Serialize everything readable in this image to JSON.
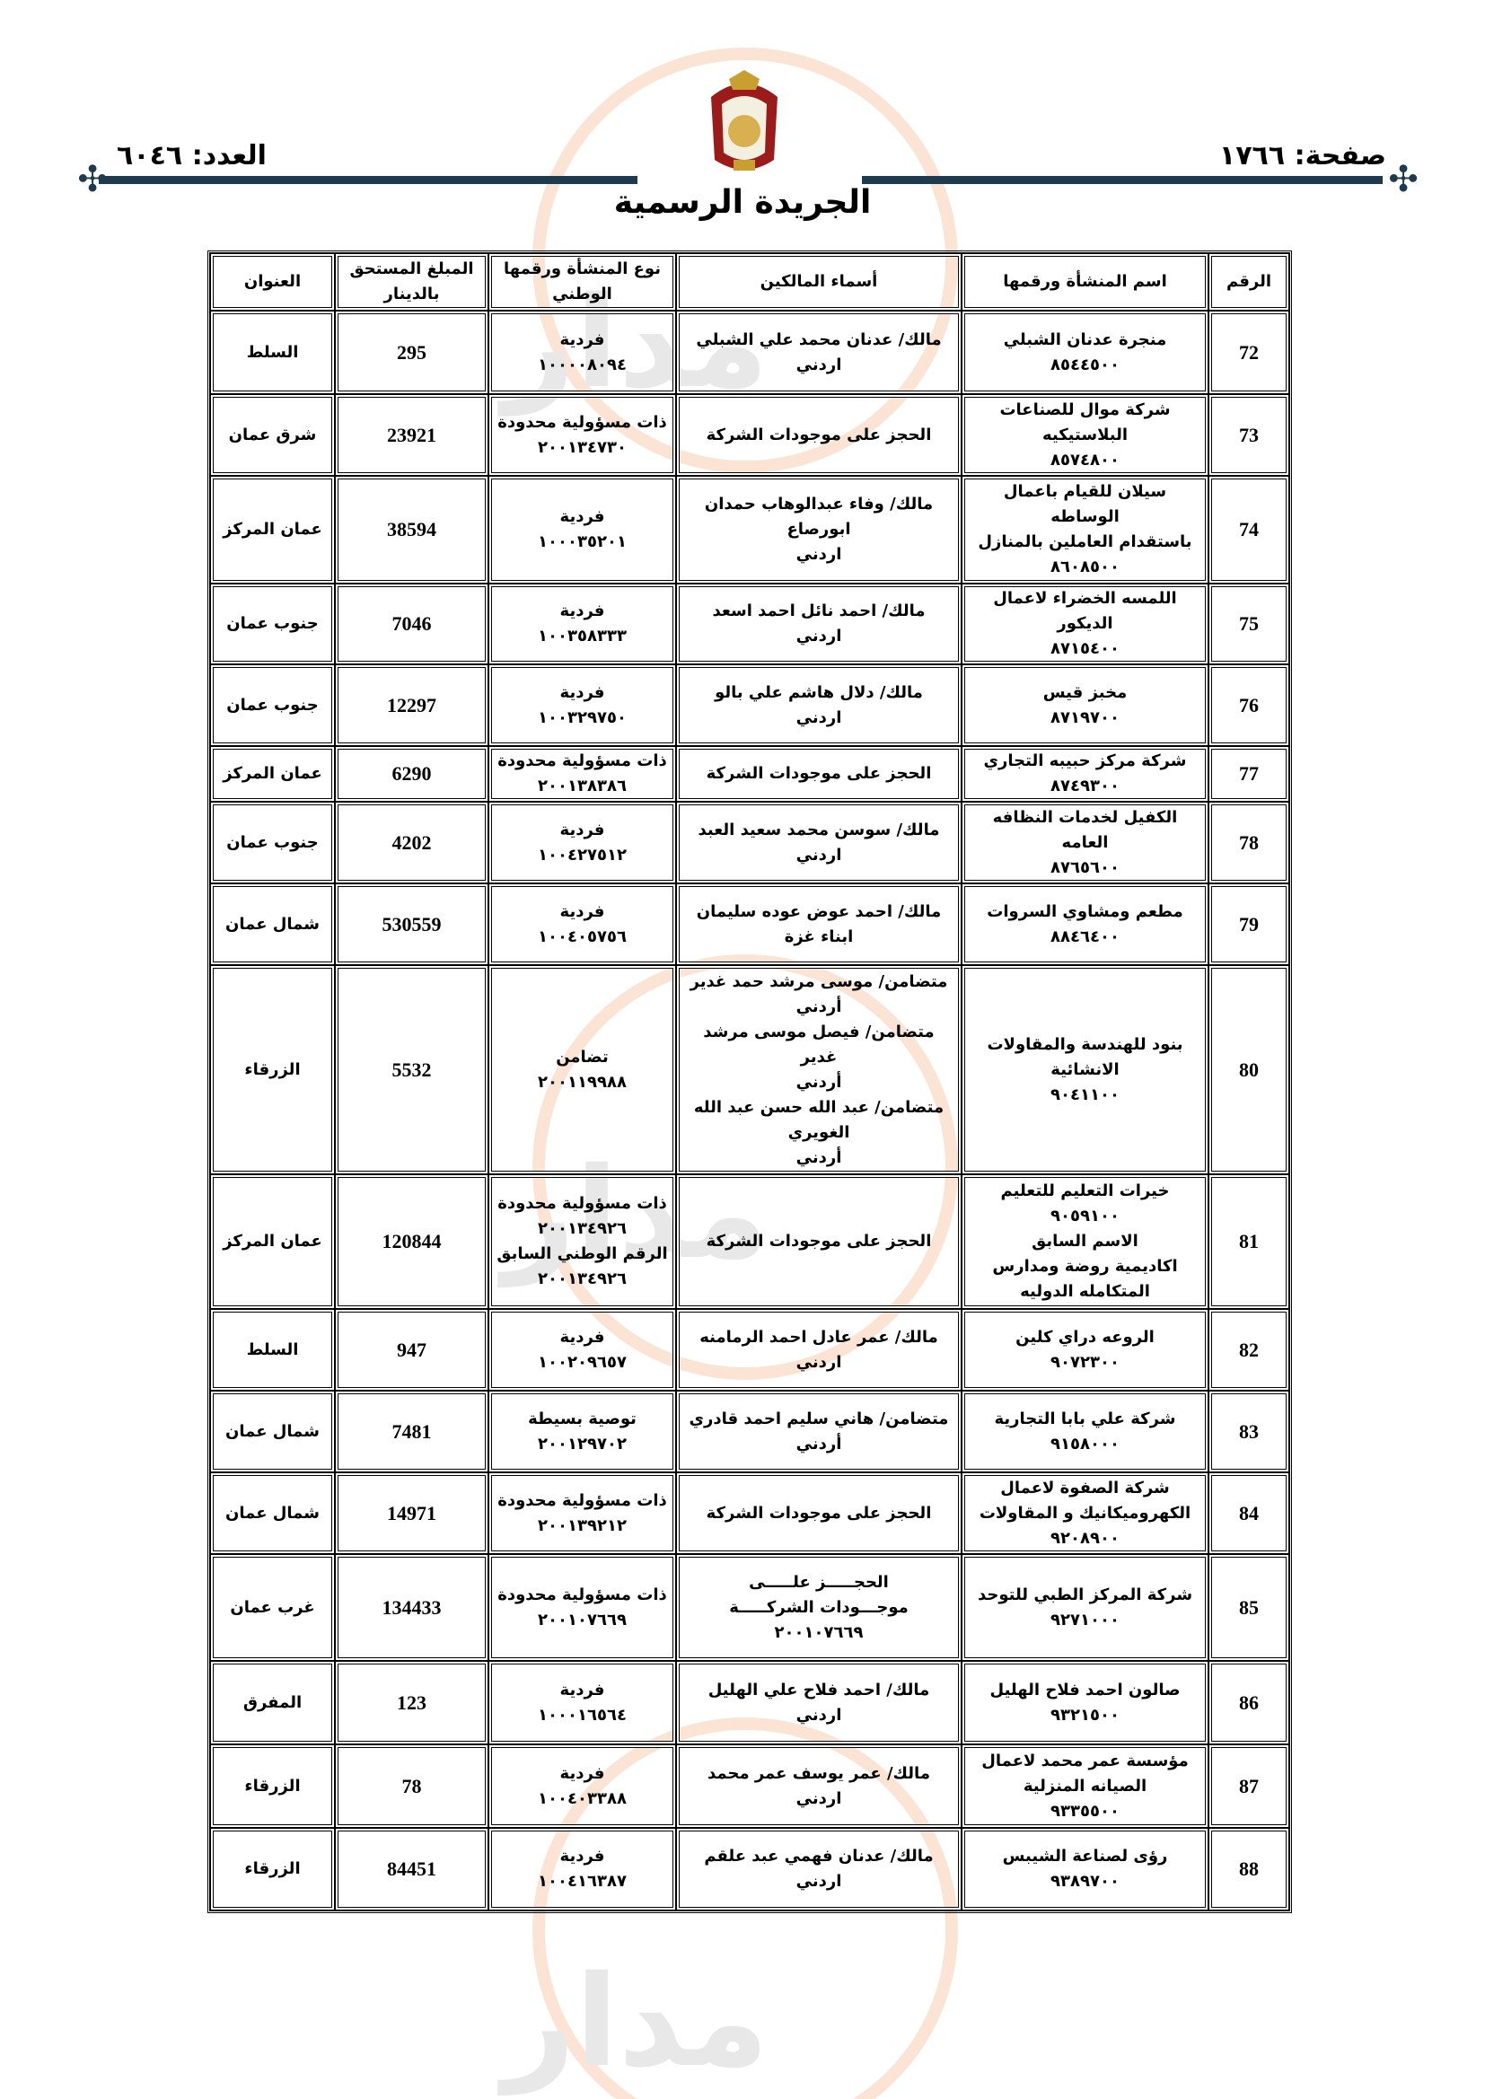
{
  "header": {
    "page_label": "صفحة: ١٧٦٦",
    "issue_label": "العدد: ٦٠٤٦",
    "title": "الجريدة الرسمية"
  },
  "table": {
    "columns": [
      "الرقم",
      "اسم المنشأة ورقمها",
      "أسماء المالكين",
      "نوع المنشأة ورقمها\nالوطني",
      "المبلغ المستحق\nبالدينار",
      "العنوان"
    ],
    "rows": [
      {
        "no": "72",
        "name": "منجرة عدنان الشبلي\n٨٥٤٤٥٠٠",
        "owners": "مالك/ عدنان محمد علي الشبلي\nاردني",
        "type": "فردية\n١٠٠٠٠٨٠٩٤",
        "amount": "295",
        "address": "السلط"
      },
      {
        "no": "73",
        "name": "شركة موال للصناعات\nالبلاستيكيه\n٨٥٧٤٨٠٠",
        "owners": "الحجز على موجودات الشركة",
        "type": "ذات مسؤولية محدودة\n٢٠٠١٣٤٧٣٠",
        "amount": "23921",
        "address": "شرق عمان"
      },
      {
        "no": "74",
        "name": "سيلان للقيام باعمال الوساطه\nباستقدام العاملين بالمنازل\n٨٦٠٨٥٠٠",
        "owners": "مالك/ وفاء عبدالوهاب حمدان\nابورصاع\nاردني",
        "type": "فردية\n١٠٠٠٣٥٢٠١",
        "amount": "38594",
        "address": "عمان المركز"
      },
      {
        "no": "75",
        "name": "اللمسه الخضراء لاعمال\nالديكور\n٨٧١٥٤٠٠",
        "owners": "مالك/ احمد نائل احمد اسعد\nاردني",
        "type": "فردية\n١٠٠٣٥٨٣٣٣",
        "amount": "7046",
        "address": "جنوب عمان"
      },
      {
        "no": "76",
        "name": "مخبز قيس\n٨٧١٩٧٠٠",
        "owners": "مالك/ دلال هاشم علي بالو\nاردني",
        "type": "فردية\n١٠٠٣٢٩٧٥٠",
        "amount": "12297",
        "address": "جنوب عمان"
      },
      {
        "no": "77",
        "name": "شركة مركز حبيبه التجاري\n٨٧٤٩٣٠٠",
        "owners": "الحجز على موجودات الشركة",
        "type": "ذات مسؤولية محدودة\n٢٠٠١٣٨٣٨٦",
        "amount": "6290",
        "address": "عمان المركز"
      },
      {
        "no": "78",
        "name": "الكفيل لخدمات النظافه العامه\n٨٧٦٥٦٠٠",
        "owners": "مالك/ سوسن محمد سعيد العبد\nاردني",
        "type": "فردية\n١٠٠٤٢٧٥١٢",
        "amount": "4202",
        "address": "جنوب عمان"
      },
      {
        "no": "79",
        "name": "مطعم ومشاوي السروات\n٨٨٤٦٤٠٠",
        "owners": "مالك/ احمد عوض عوده سليمان\nابناء غزة",
        "type": "فردية\n١٠٠٤٠٥٧٥٦",
        "amount": "530559",
        "address": "شمال عمان"
      },
      {
        "no": "80",
        "name": "بنود للهندسة والمقاولات\nالانشائية\n٩٠٤١١٠٠",
        "owners": "متضامن/ موسى مرشد حمد غدير\nأردني\nمتضامن/ فيصل موسى مرشد غدير\nأردني\nمتضامن/ عبد الله حسن عبد الله\nالغويري\nأردني",
        "type": "تضامن\n٢٠٠١١٩٩٨٨",
        "amount": "5532",
        "address": "الزرقاء"
      },
      {
        "no": "81",
        "name": "خيرات التعليم للتعليم\n٩٠٥٩١٠٠\nالاسم السابق\nاكاديمية روضة ومدارس\nالمتكامله الدوليه",
        "owners": "الحجز على موجودات الشركة",
        "type": "ذات مسؤولية محدودة\n٢٠٠١٣٤٩٢٦\nالرقم الوطني السابق\n٢٠٠١٣٤٩٢٦",
        "amount": "120844",
        "address": "عمان المركز"
      },
      {
        "no": "82",
        "name": "الروعه دراي كلين\n٩٠٧٢٣٠٠",
        "owners": "مالك/ عمر عادل احمد الرمامنه\nاردني",
        "type": "فردية\n١٠٠٢٠٩٦٥٧",
        "amount": "947",
        "address": "السلط"
      },
      {
        "no": "83",
        "name": "شركة علي بابا التجارية\n٩١٥٨٠٠٠",
        "owners": "متضامن/ هاني سليم احمد قادري\nأردني",
        "type": "توصية بسيطة\n٢٠٠١٢٩٧٠٢",
        "amount": "7481",
        "address": "شمال عمان"
      },
      {
        "no": "84",
        "name": "شركة الصفوة لاعمال\nالكهروميكانيك و المقاولات\n٩٢٠٨٩٠٠",
        "owners": "الحجز على موجودات الشركة",
        "type": "ذات مسؤولية محدودة\n٢٠٠١٣٩٢١٢",
        "amount": "14971",
        "address": "شمال عمان"
      },
      {
        "no": "85",
        "name": "شركة المركز الطبي للتوحد\n٩٢٧١٠٠٠",
        "owners": "الحجـــــز علـــــى\nموجـــودات الشركـــــة\n٢٠٠١٠٧٦٦٩",
        "type": "ذات مسؤولية محدودة\n٢٠٠١٠٧٦٦٩",
        "amount": "134433",
        "address": "غرب عمان"
      },
      {
        "no": "86",
        "name": "صالون احمد فلاح الهليل\n٩٣٢١٥٠٠",
        "owners": "مالك/ احمد فلاح علي الهليل\nاردني",
        "type": "فردية\n١٠٠٠١٦٥٦٤",
        "amount": "123",
        "address": "المفرق"
      },
      {
        "no": "87",
        "name": "مؤسسة عمر محمد لاعمال\nالصيانه المنزلية\n٩٣٣٥٥٠٠",
        "owners": "مالك/ عمر يوسف عمر محمد\nاردني",
        "type": "فردية\n١٠٠٤٠٣٣٨٨",
        "amount": "78",
        "address": "الزرقاء"
      },
      {
        "no": "88",
        "name": "رؤى لصناعة الشيبس\n٩٣٨٩٧٠٠",
        "owners": "مالك/ عدنان فهمي عبد علقم\nاردني",
        "type": "فردية\n١٠٠٤١٦٣٨٧",
        "amount": "84451",
        "address": "الزرقاء"
      }
    ]
  },
  "colors": {
    "rule": "#1d3a4f",
    "watermark_orange": "#f0a060"
  }
}
